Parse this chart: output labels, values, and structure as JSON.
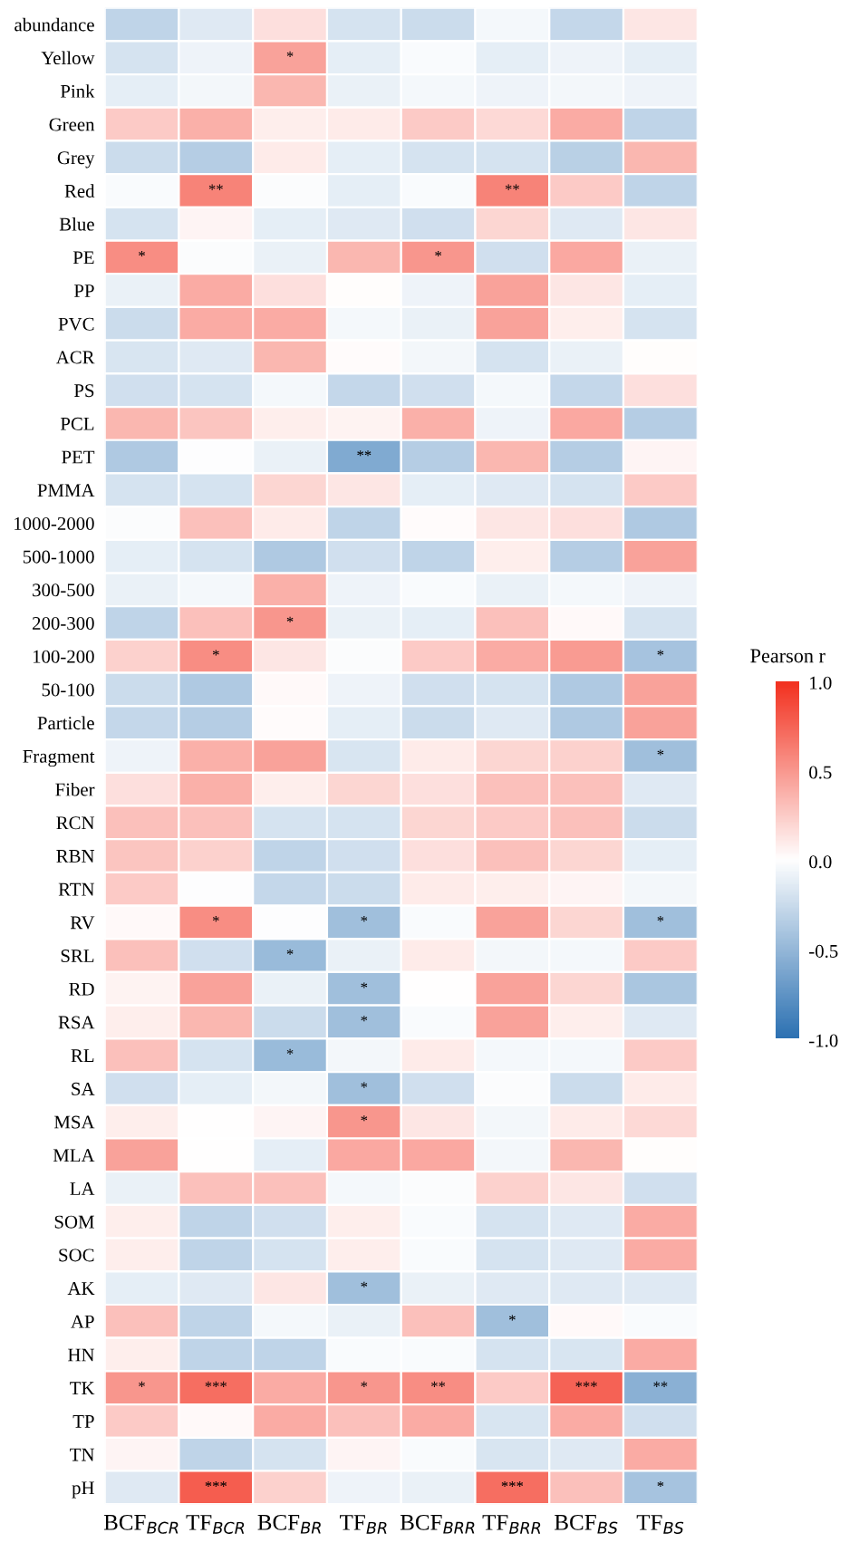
{
  "chart_data": {
    "type": "heatmap",
    "clabel": "Pearson r",
    "categories": [
      "BCF$_{BCR}$",
      "TF$_{BCR}$",
      "BCF$_{BR}$",
      "TF$_{BR}$",
      "BCF$_{BRR}$",
      "TF$_{BRR}$",
      "BCF$_{BS}$",
      "TF$_{BS}$"
    ],
    "y_categories": [
      "abundance",
      "Yellow",
      "Pink",
      "Green",
      "Grey",
      "Red",
      "Blue",
      "PE",
      "PP",
      "PVC",
      "ACR",
      "PS",
      "PCL",
      "PET",
      "PMMA",
      "1000-2000",
      "500-1000",
      "300-500",
      "200-300",
      "100-200",
      "50-100",
      "Particle",
      "Fragment",
      "Fiber",
      "RCN",
      "RBN",
      "RTN",
      "RV",
      "SRL",
      "RD",
      "RSA",
      "RL",
      "SA",
      "MSA",
      "MLA",
      "LA",
      "SOM",
      "SOC",
      "AK",
      "AP",
      "HN",
      "TK",
      "TP",
      "TN",
      "pH"
    ],
    "cells": [
      [
        -0.3,
        -0.15,
        0.15,
        -0.2,
        -0.25,
        -0.05,
        -0.28,
        0.12
      ],
      [
        -0.2,
        -0.08,
        0.45,
        -0.12,
        -0.03,
        -0.12,
        -0.08,
        -0.12
      ],
      [
        -0.12,
        -0.06,
        0.35,
        -0.1,
        -0.05,
        -0.08,
        -0.06,
        -0.08
      ],
      [
        0.25,
        0.38,
        0.08,
        0.1,
        0.25,
        0.18,
        0.4,
        -0.3
      ],
      [
        -0.25,
        -0.35,
        0.1,
        -0.12,
        -0.2,
        -0.2,
        -0.33,
        0.35
      ],
      [
        -0.03,
        0.6,
        -0.02,
        -0.12,
        -0.03,
        0.6,
        0.25,
        -0.3
      ],
      [
        -0.2,
        0.05,
        -0.12,
        -0.15,
        -0.22,
        0.2,
        -0.15,
        0.12
      ],
      [
        0.55,
        -0.02,
        -0.1,
        0.35,
        0.5,
        -0.22,
        0.42,
        -0.1
      ],
      [
        -0.1,
        0.4,
        0.15,
        0.01,
        -0.08,
        0.45,
        0.12,
        -0.12
      ],
      [
        -0.25,
        0.4,
        0.4,
        -0.05,
        -0.1,
        0.45,
        0.08,
        -0.2
      ],
      [
        -0.18,
        -0.15,
        0.35,
        0.02,
        -0.06,
        -0.2,
        -0.1,
        0.01
      ],
      [
        -0.22,
        -0.2,
        -0.05,
        -0.28,
        -0.22,
        -0.05,
        -0.28,
        0.15
      ],
      [
        0.35,
        0.28,
        0.08,
        0.06,
        0.38,
        -0.08,
        0.42,
        -0.35
      ],
      [
        -0.38,
        -0.01,
        -0.1,
        -0.6,
        -0.35,
        0.35,
        -0.35,
        0.05
      ],
      [
        -0.2,
        -0.2,
        0.2,
        0.12,
        -0.12,
        -0.15,
        -0.2,
        0.25
      ],
      [
        -0.02,
        0.3,
        0.1,
        -0.3,
        0.02,
        0.12,
        0.15,
        -0.38
      ],
      [
        -0.12,
        -0.2,
        -0.38,
        -0.22,
        -0.3,
        0.08,
        -0.35,
        0.45
      ],
      [
        -0.1,
        -0.05,
        0.38,
        -0.08,
        -0.03,
        -0.1,
        -0.05,
        -0.08
      ],
      [
        -0.3,
        0.3,
        0.5,
        -0.1,
        -0.12,
        0.3,
        0.03,
        -0.2
      ],
      [
        0.22,
        0.55,
        0.12,
        -0.02,
        0.25,
        0.4,
        0.48,
        -0.42
      ],
      [
        -0.25,
        -0.38,
        0.03,
        -0.08,
        -0.22,
        -0.2,
        -0.38,
        0.45
      ],
      [
        -0.28,
        -0.35,
        0.02,
        -0.12,
        -0.25,
        -0.15,
        -0.38,
        0.45
      ],
      [
        -0.08,
        0.38,
        0.45,
        -0.18,
        0.1,
        0.2,
        0.22,
        -0.45
      ],
      [
        0.15,
        0.38,
        0.08,
        0.2,
        0.15,
        0.3,
        0.3,
        -0.15
      ],
      [
        0.3,
        0.3,
        -0.2,
        -0.2,
        0.2,
        0.25,
        0.3,
        -0.25
      ],
      [
        0.28,
        0.22,
        -0.3,
        -0.22,
        0.15,
        0.3,
        0.2,
        -0.12
      ],
      [
        0.25,
        -0.01,
        -0.28,
        -0.25,
        0.1,
        0.08,
        0.05,
        -0.06
      ],
      [
        0.03,
        0.55,
        -0.01,
        -0.45,
        -0.03,
        0.45,
        0.2,
        -0.45
      ],
      [
        0.3,
        -0.22,
        -0.48,
        -0.1,
        0.1,
        -0.06,
        -0.05,
        0.25
      ],
      [
        0.06,
        0.45,
        -0.1,
        -0.45,
        0.0,
        0.45,
        0.2,
        -0.4
      ],
      [
        0.08,
        0.35,
        -0.25,
        -0.45,
        -0.03,
        0.45,
        0.08,
        -0.15
      ],
      [
        0.3,
        -0.2,
        -0.48,
        -0.06,
        0.1,
        -0.05,
        -0.05,
        0.25
      ],
      [
        -0.22,
        -0.12,
        -0.06,
        -0.45,
        -0.22,
        -0.02,
        -0.25,
        0.1
      ],
      [
        0.08,
        0.0,
        0.05,
        0.5,
        0.12,
        -0.06,
        0.1,
        0.18
      ],
      [
        0.45,
        0.0,
        -0.12,
        0.42,
        0.42,
        -0.06,
        0.35,
        0.01
      ],
      [
        -0.1,
        0.3,
        0.3,
        -0.05,
        -0.02,
        0.22,
        0.12,
        -0.22
      ],
      [
        0.08,
        -0.3,
        -0.22,
        0.08,
        -0.03,
        -0.2,
        -0.15,
        0.4
      ],
      [
        0.08,
        -0.3,
        -0.2,
        0.08,
        -0.03,
        -0.2,
        -0.15,
        0.4
      ],
      [
        -0.12,
        -0.15,
        0.12,
        -0.45,
        -0.1,
        -0.15,
        -0.15,
        -0.15
      ],
      [
        0.3,
        -0.3,
        -0.05,
        -0.1,
        0.3,
        -0.45,
        0.03,
        -0.03
      ],
      [
        0.08,
        -0.3,
        -0.3,
        -0.03,
        -0.03,
        -0.2,
        -0.18,
        0.4
      ],
      [
        0.5,
        0.7,
        0.4,
        0.5,
        0.55,
        0.25,
        0.75,
        -0.55
      ],
      [
        0.25,
        0.03,
        0.4,
        0.3,
        0.4,
        -0.18,
        0.4,
        -0.22
      ],
      [
        0.05,
        -0.3,
        -0.2,
        0.05,
        -0.03,
        -0.18,
        -0.15,
        0.4
      ],
      [
        -0.15,
        0.78,
        0.22,
        -0.08,
        -0.1,
        0.7,
        0.3,
        -0.42
      ]
    ],
    "cell_labels": [
      [
        null,
        null,
        null,
        null,
        null,
        null,
        null,
        null
      ],
      [
        null,
        null,
        "*",
        null,
        null,
        null,
        null,
        null
      ],
      [
        null,
        null,
        null,
        null,
        null,
        null,
        null,
        null
      ],
      [
        null,
        null,
        null,
        null,
        null,
        null,
        null,
        null
      ],
      [
        null,
        null,
        null,
        null,
        null,
        null,
        null,
        null
      ],
      [
        null,
        "**",
        null,
        null,
        null,
        "**",
        null,
        null
      ],
      [
        null,
        null,
        null,
        null,
        null,
        null,
        null,
        null
      ],
      [
        "*",
        null,
        null,
        null,
        "*",
        null,
        null,
        null
      ],
      [
        null,
        null,
        null,
        null,
        null,
        null,
        null,
        null
      ],
      [
        null,
        null,
        null,
        null,
        null,
        null,
        null,
        null
      ],
      [
        null,
        null,
        null,
        null,
        null,
        null,
        null,
        null
      ],
      [
        null,
        null,
        null,
        null,
        null,
        null,
        null,
        null
      ],
      [
        null,
        null,
        null,
        null,
        null,
        null,
        null,
        null
      ],
      [
        null,
        null,
        null,
        "**",
        null,
        null,
        null,
        null
      ],
      [
        null,
        null,
        null,
        null,
        null,
        null,
        null,
        null
      ],
      [
        null,
        null,
        null,
        null,
        null,
        null,
        null,
        null
      ],
      [
        null,
        null,
        null,
        null,
        null,
        null,
        null,
        null
      ],
      [
        null,
        null,
        null,
        null,
        null,
        null,
        null,
        null
      ],
      [
        null,
        null,
        "*",
        null,
        null,
        null,
        null,
        null
      ],
      [
        null,
        "*",
        null,
        null,
        null,
        null,
        null,
        "*"
      ],
      [
        null,
        null,
        null,
        null,
        null,
        null,
        null,
        null
      ],
      [
        null,
        null,
        null,
        null,
        null,
        null,
        null,
        null
      ],
      [
        null,
        null,
        null,
        null,
        null,
        null,
        null,
        "*"
      ],
      [
        null,
        null,
        null,
        null,
        null,
        null,
        null,
        null
      ],
      [
        null,
        null,
        null,
        null,
        null,
        null,
        null,
        null
      ],
      [
        null,
        null,
        null,
        null,
        null,
        null,
        null,
        null
      ],
      [
        null,
        null,
        null,
        null,
        null,
        null,
        null,
        null
      ],
      [
        null,
        "*",
        null,
        "*",
        null,
        null,
        null,
        "*"
      ],
      [
        null,
        null,
        "*",
        null,
        null,
        null,
        null,
        null
      ],
      [
        null,
        null,
        null,
        "*",
        null,
        null,
        null,
        null
      ],
      [
        null,
        null,
        null,
        "*",
        null,
        null,
        null,
        null
      ],
      [
        null,
        null,
        "*",
        null,
        null,
        null,
        null,
        null
      ],
      [
        null,
        null,
        null,
        "*",
        null,
        null,
        null,
        null
      ],
      [
        null,
        null,
        null,
        "*",
        null,
        null,
        null,
        null
      ],
      [
        null,
        null,
        null,
        null,
        null,
        null,
        null,
        null
      ],
      [
        null,
        null,
        null,
        null,
        null,
        null,
        null,
        null
      ],
      [
        null,
        null,
        null,
        null,
        null,
        null,
        null,
        null
      ],
      [
        null,
        null,
        null,
        null,
        null,
        null,
        null,
        null
      ],
      [
        null,
        null,
        null,
        "*",
        null,
        null,
        null,
        null
      ],
      [
        null,
        null,
        null,
        null,
        null,
        "*",
        null,
        null
      ],
      [
        null,
        null,
        null,
        null,
        null,
        null,
        null,
        null
      ],
      [
        "*",
        "***",
        null,
        "*",
        "**",
        null,
        "***",
        "**"
      ],
      [
        null,
        null,
        null,
        null,
        null,
        null,
        null,
        null
      ],
      [
        null,
        null,
        null,
        null,
        null,
        null,
        null,
        null
      ],
      [
        null,
        "***",
        null,
        null,
        null,
        "***",
        null,
        "*"
      ]
    ],
    "clim": [
      -1.0,
      1.0
    ],
    "cticks": [
      {
        "value": -1.0,
        "label": "-1.0"
      },
      {
        "value": -0.5,
        "label": "-0.5"
      },
      {
        "value": 0.0,
        "label": "0.0"
      },
      {
        "value": 0.5,
        "label": "0.5"
      },
      {
        "value": 1.0,
        "label": "1.0"
      }
    ]
  }
}
